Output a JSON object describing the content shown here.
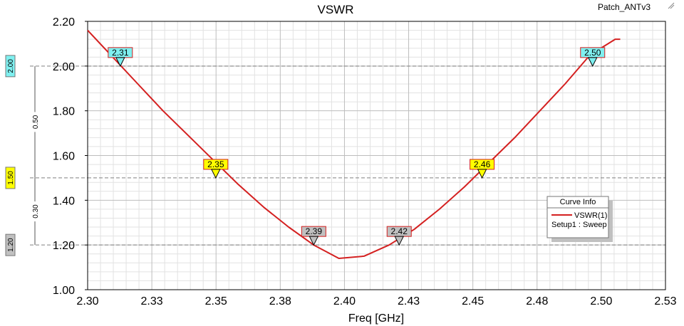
{
  "header": {
    "title": "VSWR",
    "project": "Patch_ANTv3"
  },
  "chart_data": {
    "type": "line",
    "title": "VSWR",
    "xlabel": "Freq [GHz]",
    "ylabel": "",
    "xlim": [
      2.3,
      2.53
    ],
    "ylim": [
      1.0,
      2.2
    ],
    "x_ticks": [
      "2.30",
      "2.33",
      "2.35",
      "2.38",
      "2.40",
      "2.43",
      "2.45",
      "2.48",
      "2.50",
      "2.53"
    ],
    "y_ticks": [
      "1.00",
      "1.20",
      "1.40",
      "1.60",
      "1.80",
      "2.00",
      "2.20"
    ],
    "grid": true,
    "series": [
      {
        "name": "VSWR(1)",
        "color": "#d42020",
        "x": [
          2.3,
          2.31,
          2.32,
          2.33,
          2.34,
          2.35,
          2.36,
          2.37,
          2.38,
          2.39,
          2.395,
          2.4,
          2.41,
          2.42,
          2.43,
          2.44,
          2.45,
          2.46,
          2.47,
          2.48,
          2.49,
          2.5,
          2.51,
          2.512
        ],
        "y": [
          2.16,
          2.04,
          1.92,
          1.8,
          1.69,
          1.58,
          1.47,
          1.37,
          1.28,
          1.2,
          1.17,
          1.14,
          1.15,
          1.2,
          1.27,
          1.36,
          1.46,
          1.57,
          1.68,
          1.8,
          1.92,
          2.05,
          2.12,
          2.12
        ]
      }
    ],
    "legend": {
      "title": "Curve Info",
      "entry": "VSWR(1)",
      "subentry": "Setup1 : Sweep",
      "placement": "right"
    },
    "markers": [
      {
        "label": "2.31",
        "x": 2.313,
        "y": 2.0,
        "color": "#7ff0f0"
      },
      {
        "label": "2.35",
        "x": 2.351,
        "y": 1.5,
        "color": "#ffff00"
      },
      {
        "label": "2.39",
        "x": 2.39,
        "y": 1.2,
        "color": "#c0c0c0"
      },
      {
        "label": "2.42",
        "x": 2.424,
        "y": 1.2,
        "color": "#c0c0c0"
      },
      {
        "label": "2.46",
        "x": 2.457,
        "y": 1.5,
        "color": "#ffff00"
      },
      {
        "label": "2.50",
        "x": 2.501,
        "y": 2.0,
        "color": "#7ff0f0"
      }
    ],
    "reference_lines": [
      {
        "label": "2.00",
        "y": 2.0,
        "color": "#7ff0f0"
      },
      {
        "label": "1.50",
        "y": 1.5,
        "color": "#ffff00"
      },
      {
        "label": "1.20",
        "y": 1.2,
        "color": "#c0c0c0"
      }
    ],
    "band_gaps": [
      {
        "label": "0.50",
        "from": 1.5,
        "to": 2.0
      },
      {
        "label": "0.30",
        "from": 1.2,
        "to": 1.5
      }
    ]
  }
}
